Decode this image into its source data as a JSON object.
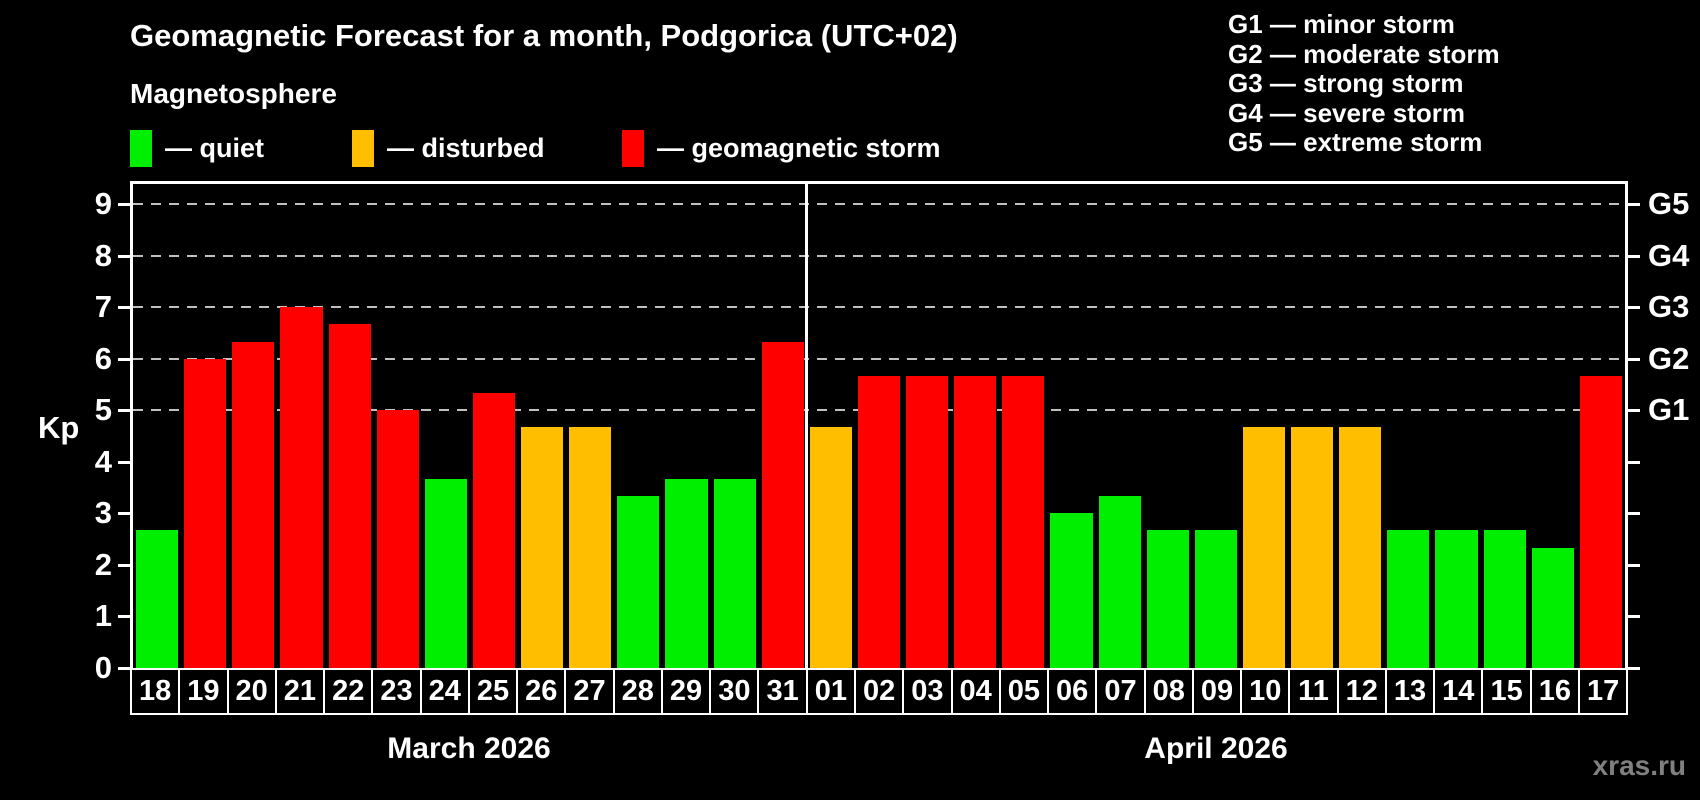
{
  "header": {
    "title": "Geomagnetic Forecast for a month, Podgorica (UTC+02)",
    "subtitle": "Magnetosphere"
  },
  "legend": {
    "items": [
      {
        "key": "quiet",
        "label": "— quiet",
        "color": "#00ee00"
      },
      {
        "key": "disturbed",
        "label": "— disturbed",
        "color": "#ffbe00"
      },
      {
        "key": "storm",
        "label": "— geomagnetic storm",
        "color": "#ff0000"
      }
    ]
  },
  "g_legend": {
    "lines": [
      "G1 — minor storm",
      "G2 — moderate storm",
      "G3 — strong storm",
      "G4 — severe storm",
      "G5 — extreme storm"
    ]
  },
  "watermark": "xras.ru",
  "chart_data": {
    "type": "bar",
    "title": "Geomagnetic Forecast for a month, Podgorica (UTC+02)",
    "ylabel": "Kp",
    "ylim": [
      0,
      9.4
    ],
    "yticks": [
      0,
      1,
      2,
      3,
      4,
      5,
      6,
      7,
      8,
      9
    ],
    "gridlines_at": [
      5,
      6,
      7,
      8,
      9
    ],
    "right_axis": [
      {
        "label": "G1",
        "kp": 5
      },
      {
        "label": "G2",
        "kp": 6
      },
      {
        "label": "G3",
        "kp": 7
      },
      {
        "label": "G4",
        "kp": 8
      },
      {
        "label": "G5",
        "kp": 9
      }
    ],
    "status_colors": {
      "quiet": "#00ee00",
      "disturbed": "#ffbe00",
      "storm": "#ff0000"
    },
    "groups": [
      {
        "label": "March 2026",
        "bars": [
          {
            "day": "18",
            "kp": 2.67,
            "status": "quiet"
          },
          {
            "day": "19",
            "kp": 6.0,
            "status": "storm"
          },
          {
            "day": "20",
            "kp": 6.33,
            "status": "storm"
          },
          {
            "day": "21",
            "kp": 7.0,
            "status": "storm"
          },
          {
            "day": "22",
            "kp": 6.67,
            "status": "storm"
          },
          {
            "day": "23",
            "kp": 5.0,
            "status": "storm"
          },
          {
            "day": "24",
            "kp": 3.67,
            "status": "quiet"
          },
          {
            "day": "25",
            "kp": 5.33,
            "status": "storm"
          },
          {
            "day": "26",
            "kp": 4.67,
            "status": "disturbed"
          },
          {
            "day": "27",
            "kp": 4.67,
            "status": "disturbed"
          },
          {
            "day": "28",
            "kp": 3.33,
            "status": "quiet"
          },
          {
            "day": "29",
            "kp": 3.67,
            "status": "quiet"
          },
          {
            "day": "30",
            "kp": 3.67,
            "status": "quiet"
          },
          {
            "day": "31",
            "kp": 6.33,
            "status": "storm"
          }
        ]
      },
      {
        "label": "April 2026",
        "bars": [
          {
            "day": "01",
            "kp": 4.67,
            "status": "disturbed"
          },
          {
            "day": "02",
            "kp": 5.67,
            "status": "storm"
          },
          {
            "day": "03",
            "kp": 5.67,
            "status": "storm"
          },
          {
            "day": "04",
            "kp": 5.67,
            "status": "storm"
          },
          {
            "day": "05",
            "kp": 5.67,
            "status": "storm"
          },
          {
            "day": "06",
            "kp": 3.0,
            "status": "quiet"
          },
          {
            "day": "07",
            "kp": 3.33,
            "status": "quiet"
          },
          {
            "day": "08",
            "kp": 2.67,
            "status": "quiet"
          },
          {
            "day": "09",
            "kp": 2.67,
            "status": "quiet"
          },
          {
            "day": "10",
            "kp": 4.67,
            "status": "disturbed"
          },
          {
            "day": "11",
            "kp": 4.67,
            "status": "disturbed"
          },
          {
            "day": "12",
            "kp": 4.67,
            "status": "disturbed"
          },
          {
            "day": "13",
            "kp": 2.67,
            "status": "quiet"
          },
          {
            "day": "14",
            "kp": 2.67,
            "status": "quiet"
          },
          {
            "day": "15",
            "kp": 2.67,
            "status": "quiet"
          },
          {
            "day": "16",
            "kp": 2.33,
            "status": "quiet"
          },
          {
            "day": "17",
            "kp": 5.67,
            "status": "storm"
          }
        ]
      }
    ]
  }
}
